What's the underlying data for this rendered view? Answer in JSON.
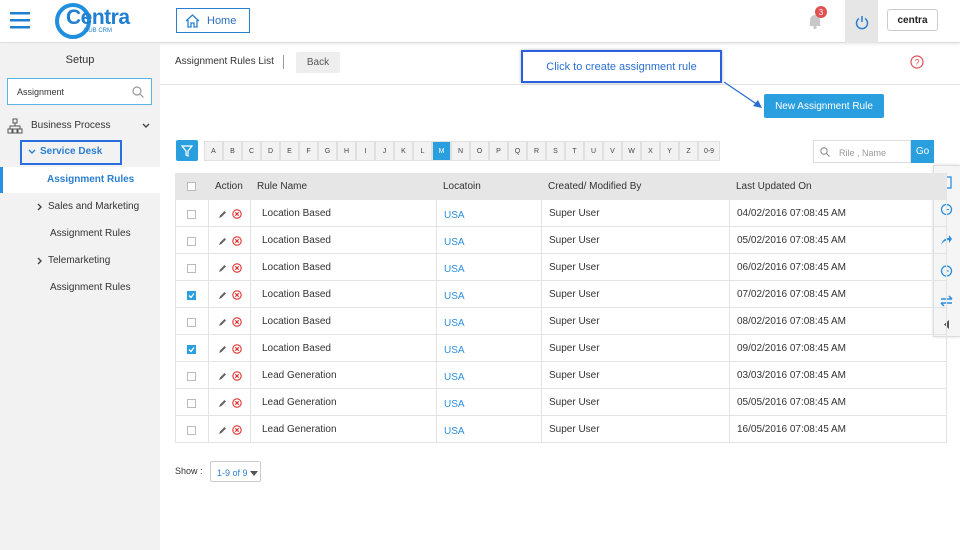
{
  "header": {
    "brand": "Centra",
    "brand_sub": "HUB CRM",
    "home": "Home",
    "notification_count": "3",
    "logo": "centra"
  },
  "sidebar": {
    "title": "Setup",
    "search": "Assignment",
    "items": [
      {
        "label": "Business Process",
        "level": 0,
        "icon": "tree",
        "expanded": true
      },
      {
        "label": "Service Desk",
        "level": 1,
        "expanded": true,
        "highlighted": true
      },
      {
        "label": "Assignment Rules",
        "level": 2,
        "active": true
      },
      {
        "label": "Sales and Marketing",
        "level": 1,
        "expanded": false
      },
      {
        "label": "Assignment Rules",
        "level": 2
      },
      {
        "label": "Telemarketing",
        "level": 1,
        "expanded": false
      },
      {
        "label": "Assignment Rules",
        "level": 2
      }
    ]
  },
  "toolbar": {
    "title": "Assignment Rules List",
    "back": "Back",
    "callout": "Click to create assignment rule",
    "new_button": "New Assignment Rule"
  },
  "alphabet": {
    "letters": [
      "A",
      "B",
      "C",
      "D",
      "E",
      "F",
      "G",
      "H",
      "I",
      "J",
      "K",
      "L",
      "M",
      "N",
      "O",
      "P",
      "Q",
      "R",
      "S",
      "T",
      "U",
      "V",
      "W",
      "X",
      "Y",
      "Z",
      "0-9"
    ],
    "active": "M"
  },
  "search": {
    "placeholder": "Rile , Name",
    "go": "Go"
  },
  "table": {
    "columns": [
      "Action",
      "Rule Name",
      "Locatoin",
      "Created/ Modified By",
      "Last Updated On"
    ],
    "rows": [
      {
        "selected": false,
        "cells": [
          "Location Based",
          "USA",
          "Super User",
          "04/02/2016 07:08:45 AM"
        ]
      },
      {
        "selected": false,
        "cells": [
          "Location Based",
          "USA",
          "Super User",
          "05/02/2016 07:08:45 AM"
        ]
      },
      {
        "selected": false,
        "cells": [
          "Location Based",
          "USA",
          "Super User",
          "06/02/2016 07:08:45 AM"
        ]
      },
      {
        "selected": true,
        "cells": [
          "Location Based",
          "USA",
          "Super User",
          "07/02/2016 07:08:45 AM"
        ]
      },
      {
        "selected": false,
        "cells": [
          "Location Based",
          "USA",
          "Super User",
          "08/02/2016 07:08:45 AM"
        ]
      },
      {
        "selected": true,
        "cells": [
          "Location Based",
          "USA",
          "Super User",
          "09/02/2016 07:08:45 AM"
        ]
      },
      {
        "selected": false,
        "cells": [
          "Lead Generation",
          "USA",
          "Super User",
          "03/03/2016 07:08:45 AM"
        ]
      },
      {
        "selected": false,
        "cells": [
          "Lead Generation",
          "USA",
          "Super User",
          "05/05/2016 07:08:45 AM"
        ]
      },
      {
        "selected": false,
        "cells": [
          "Lead Generation",
          "USA",
          "Super User",
          "16/05/2016 07:08:45 AM"
        ]
      }
    ]
  },
  "footer": {
    "show": "Show :",
    "pager": "1-9 of 9"
  }
}
